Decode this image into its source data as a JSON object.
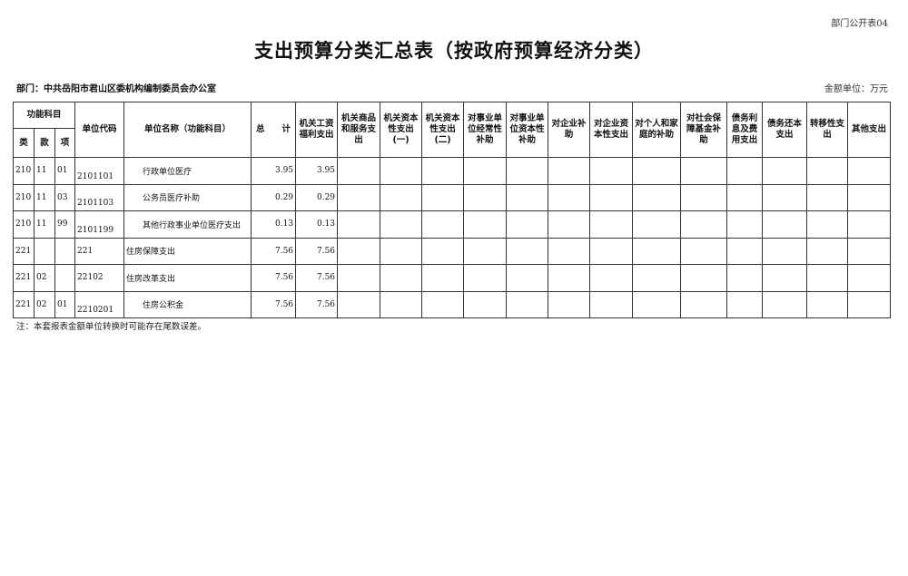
{
  "form_no": "部门公开表04",
  "title": "支出预算分类汇总表（按政府预算经济分类）",
  "department": "部门：中共岳阳市君山区委机构编制委员会办公室",
  "amount_unit": "金额单位：万元",
  "headers": {
    "func_subject": "功能科目",
    "lei": "类",
    "kuan": "款",
    "xiang": "项",
    "unit_code": "单位代码",
    "unit_name": "单位名称（功能科目）",
    "total": "总　　计",
    "econ": [
      "机关工资福利支出",
      "机关商品和服务支出",
      "机关资本性支出(一)",
      "机关资本性支出(二)",
      "对事业单位经常性补助",
      "对事业单位资本性补助",
      "对企业补助",
      "对企业资本性支出",
      "对个人和家庭的补助",
      "对社会保障基金补助",
      "债务利息及费用支出",
      "债务还本支出",
      "转移性支出",
      "其他支出"
    ]
  },
  "rows": [
    {
      "lei": "210",
      "kuan": "11",
      "xiang": "01",
      "code": "2101101",
      "name": "行政单位医疗",
      "total": "3.95",
      "wage": "3.95",
      "indent": true
    },
    {
      "lei": "210",
      "kuan": "11",
      "xiang": "03",
      "code": "2101103",
      "name": "公务员医疗补助",
      "total": "0.29",
      "wage": "0.29",
      "indent": true
    },
    {
      "lei": "210",
      "kuan": "11",
      "xiang": "99",
      "code": "2101199",
      "name": "其他行政事业单位医疗支出",
      "total": "0.13",
      "wage": "0.13",
      "indent": true
    },
    {
      "lei": "221",
      "kuan": "",
      "xiang": "",
      "code": "221",
      "name": "住房保障支出",
      "total": "7.56",
      "wage": "7.56",
      "indent": false
    },
    {
      "lei": "221",
      "kuan": "02",
      "xiang": "",
      "code": "22102",
      "name": "住房改革支出",
      "total": "7.56",
      "wage": "7.56",
      "indent": false
    },
    {
      "lei": "221",
      "kuan": "02",
      "xiang": "01",
      "code": "2210201",
      "name": "住房公积金",
      "total": "7.56",
      "wage": "7.56",
      "indent": true
    }
  ],
  "note": "注：本套报表金额单位转换时可能存在尾数误差。"
}
